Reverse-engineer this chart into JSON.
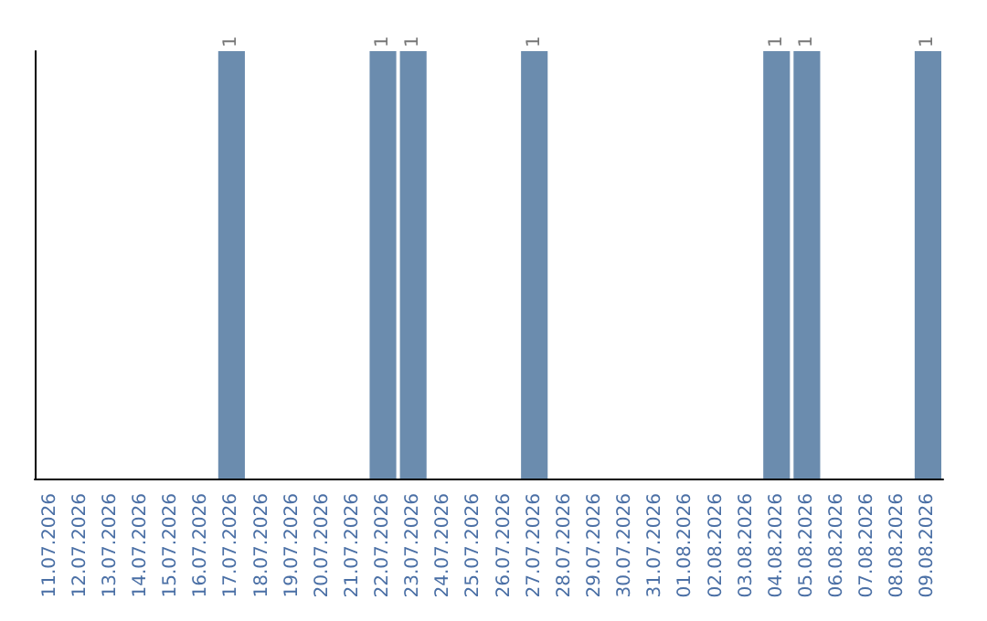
{
  "chart_data": {
    "type": "bar",
    "categories": [
      "11.07.2026",
      "12.07.2026",
      "13.07.2026",
      "14.07.2026",
      "15.07.2026",
      "16.07.2026",
      "17.07.2026",
      "18.07.2026",
      "19.07.2026",
      "20.07.2026",
      "21.07.2026",
      "22.07.2026",
      "23.07.2026",
      "24.07.2026",
      "25.07.2026",
      "26.07.2026",
      "27.07.2026",
      "28.07.2026",
      "29.07.2026",
      "30.07.2026",
      "31.07.2026",
      "01.08.2026",
      "02.08.2026",
      "03.08.2026",
      "04.08.2026",
      "05.08.2026",
      "06.08.2026",
      "07.08.2026",
      "08.08.2026",
      "09.08.2026"
    ],
    "values": [
      0,
      0,
      0,
      0,
      0,
      0,
      1,
      0,
      0,
      0,
      0,
      1,
      1,
      0,
      0,
      0,
      1,
      0,
      0,
      0,
      0,
      0,
      0,
      0,
      1,
      1,
      0,
      0,
      0,
      1
    ],
    "value_labels": [
      null,
      null,
      null,
      null,
      null,
      null,
      "1",
      null,
      null,
      null,
      null,
      "1",
      "1",
      null,
      null,
      null,
      "1",
      null,
      null,
      null,
      null,
      null,
      null,
      null,
      "1",
      "1",
      null,
      null,
      null,
      "1"
    ],
    "color": "#6b8cae",
    "tick_labels": "x",
    "grid": false
  }
}
